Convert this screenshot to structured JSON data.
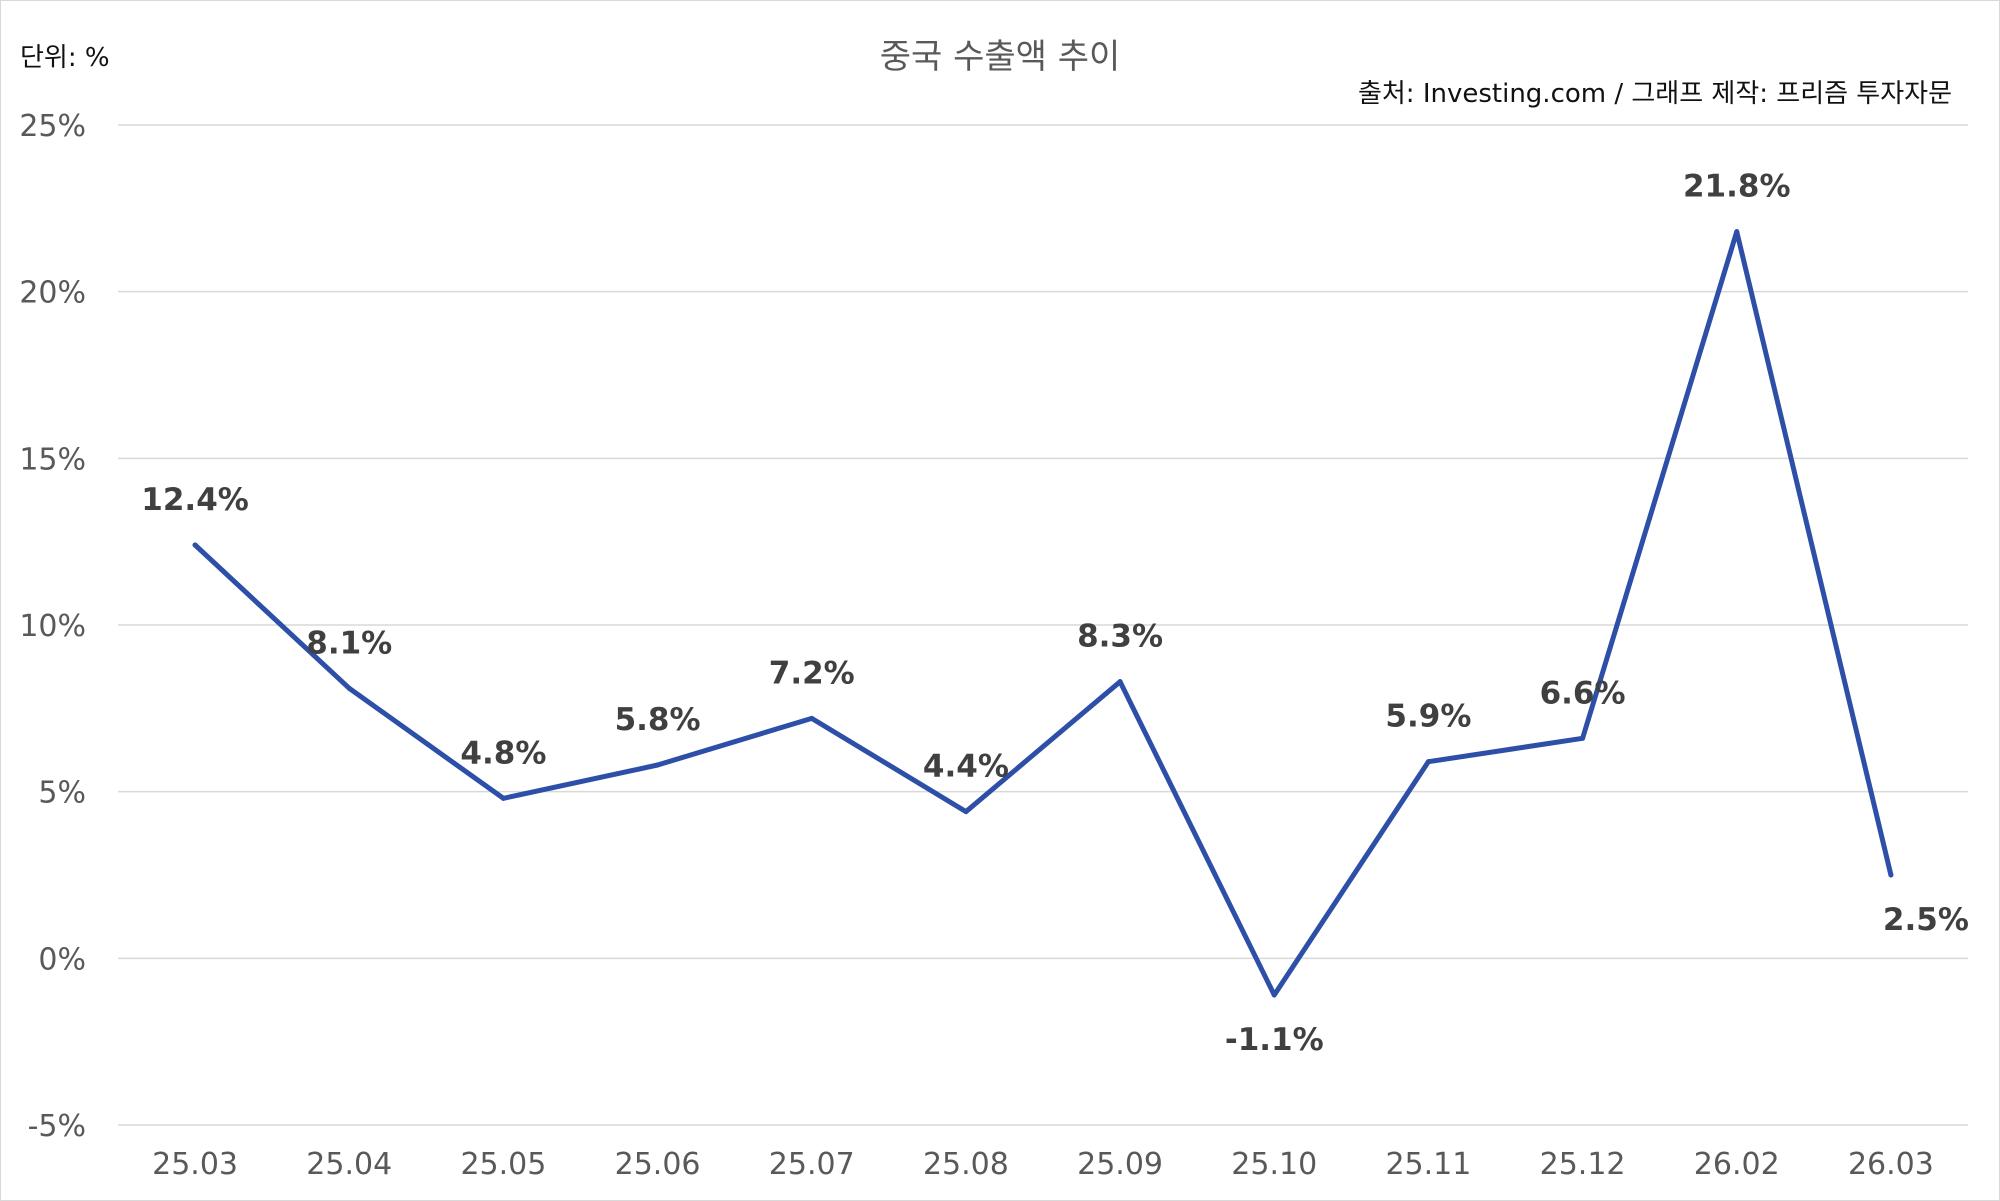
{
  "chart_data": {
    "type": "line",
    "title": "중국 수출액 추이",
    "unit_label": "단위: %",
    "source": "출처: Investing.com / 그래프 제작: 프리즘 투자자문",
    "categories": [
      "25.03",
      "25.04",
      "25.05",
      "25.06",
      "25.07",
      "25.08",
      "25.09",
      "25.10",
      "25.11",
      "25.12",
      "26.02",
      "26.03"
    ],
    "series": [
      {
        "values": [
          12.4,
          8.1,
          4.8,
          5.8,
          7.2,
          4.4,
          8.3,
          -1.1,
          5.9,
          6.6,
          21.8,
          2.5
        ]
      }
    ],
    "data_labels": [
      "12.4%",
      "8.1%",
      "4.8%",
      "5.8%",
      "7.2%",
      "4.4%",
      "8.3%",
      "-1.1%",
      "5.9%",
      "6.6%",
      "21.8%",
      "2.5%"
    ],
    "ylim": [
      -5,
      25
    ],
    "yticks": [
      25,
      20,
      15,
      10,
      5,
      0,
      -5
    ],
    "ytick_labels": [
      "25%",
      "20%",
      "15%",
      "10%",
      "5%",
      "0%",
      "-5%"
    ],
    "grid": true,
    "line_color": "#2e4fa8",
    "grid_color": "#d9d9d9"
  }
}
